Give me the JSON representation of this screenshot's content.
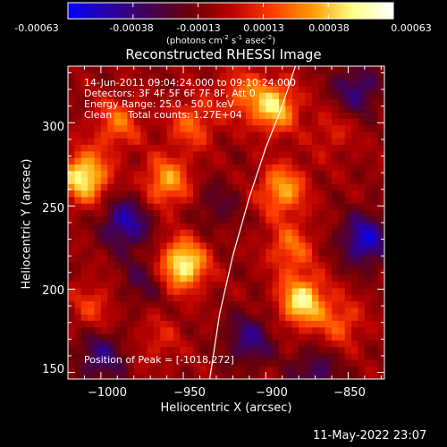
{
  "colorbar": {
    "ticks": [
      "-0.00063",
      "-0.00038",
      "-0.00013",
      "0.00013",
      "0.00038",
      "0.00063"
    ],
    "unit_parts": {
      "a": "(photons cm",
      "b": "-2",
      "c": " s",
      "d": "-1",
      "e": " asec",
      "f": "-2",
      "g": ")"
    },
    "colors": [
      "#0000ff",
      "#2a00a8",
      "#420052",
      "#6a0008",
      "#b80000",
      "#ff3a00",
      "#ff9a00",
      "#ffff88",
      "#ffffff"
    ]
  },
  "annotations": {
    "line1": "14-Jun-2011 09:04:24.000 to 09:10:24.000",
    "line2": "Detectors: 3F 4F 5F 6F 7F 8F, Att 0",
    "line3": "Energy Range: 25.0 - 50.0 keV",
    "line4_a": "Clean",
    "line4_b": "Total counts: 1.27E+04",
    "peak": "Position of Peak = [-1018,272]"
  },
  "footer": {
    "timestamp": "11-May-2022 23:07"
  },
  "chart_data": {
    "type": "heatmap",
    "title": "Reconstructed RHESSI Image",
    "xlabel": "Heliocentric X (arcsec)",
    "ylabel": "Heliocentric Y (arcsec)",
    "xlim": [
      -1020,
      -828
    ],
    "ylim": [
      146,
      334
    ],
    "xticks": [
      -1000,
      -950,
      -900,
      -850
    ],
    "yticks": [
      150,
      200,
      250,
      300
    ],
    "xtick_labels": [
      "−1000",
      "−950",
      "−900",
      "−850"
    ],
    "ytick_labels": [
      "150",
      "200",
      "250",
      "300"
    ],
    "zlim": [
      -0.00063,
      0.00063
    ],
    "peak": [
      -1018,
      272
    ],
    "limb_curve": [
      [
        -882,
        334
      ],
      [
        -890,
        310
      ],
      [
        -900,
        285
      ],
      [
        -910,
        255
      ],
      [
        -920,
        220
      ],
      [
        -928,
        185
      ],
      [
        -934,
        146
      ]
    ],
    "hotspots": [
      {
        "x": -1010,
        "y": 268,
        "value": 0.00058
      },
      {
        "x": -990,
        "y": 300,
        "value": 0.0003
      },
      {
        "x": -960,
        "y": 265,
        "value": 0.0004
      },
      {
        "x": -950,
        "y": 215,
        "value": 0.0006
      },
      {
        "x": -945,
        "y": 300,
        "value": 0.00028
      },
      {
        "x": -915,
        "y": 318,
        "value": 0.00025
      },
      {
        "x": -895,
        "y": 310,
        "value": 0.0005
      },
      {
        "x": -890,
        "y": 260,
        "value": 0.00042
      },
      {
        "x": -885,
        "y": 225,
        "value": 0.0003
      },
      {
        "x": -878,
        "y": 193,
        "value": 0.00055
      },
      {
        "x": -855,
        "y": 180,
        "value": 0.00025
      },
      {
        "x": -860,
        "y": 295,
        "value": 0.00015
      },
      {
        "x": -1005,
        "y": 190,
        "value": 0.0002
      },
      {
        "x": -965,
        "y": 170,
        "value": 0.00015
      }
    ],
    "coldspots": [
      {
        "x": -985,
        "y": 240,
        "value": -0.0004
      },
      {
        "x": -1000,
        "y": 160,
        "value": -0.0003
      },
      {
        "x": -910,
        "y": 170,
        "value": -0.0003
      },
      {
        "x": -840,
        "y": 230,
        "value": -0.00045
      },
      {
        "x": -845,
        "y": 320,
        "value": -0.0003
      },
      {
        "x": -930,
        "y": 250,
        "value": -0.00015
      },
      {
        "x": -975,
        "y": 205,
        "value": -0.00018
      },
      {
        "x": -870,
        "y": 150,
        "value": -0.00025
      }
    ]
  }
}
